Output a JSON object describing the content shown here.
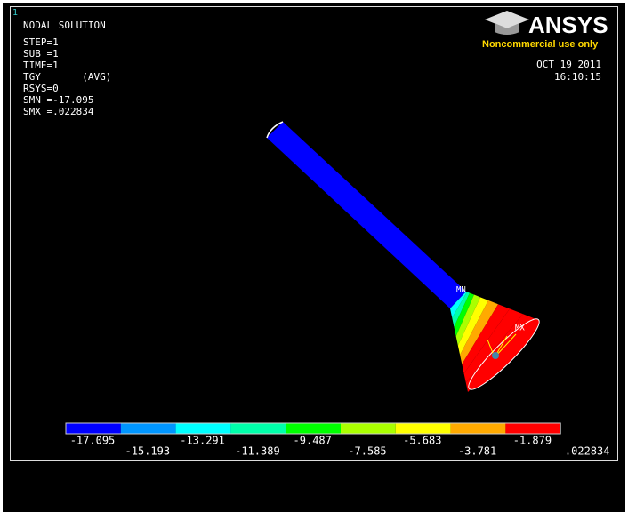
{
  "window_number": "1",
  "info_lines": [
    "NODAL SOLUTION",
    "STEP=1",
    "SUB =1",
    "TIME=1",
    "TGY       (AVG)",
    "RSYS=0",
    "SMN =-17.095",
    "SMX =.022834"
  ],
  "logo": {
    "title": "ANSYS",
    "subtitle": "Noncommercial use only"
  },
  "date": "OCT 19 2011",
  "time": "16:10:15",
  "labels": {
    "min": "MN",
    "max": "MX"
  },
  "legend": {
    "colors": [
      "#0000ff",
      "#0096ff",
      "#00ffff",
      "#00ffaa",
      "#00ff00",
      "#aaff00",
      "#ffff00",
      "#ffaa00",
      "#ff0000"
    ],
    "labels": [
      "-17.095",
      "-15.193",
      "-13.291",
      "-11.389",
      "-9.487",
      "-7.585",
      "-5.683",
      "-3.781",
      "-1.879",
      ".022834"
    ]
  }
}
